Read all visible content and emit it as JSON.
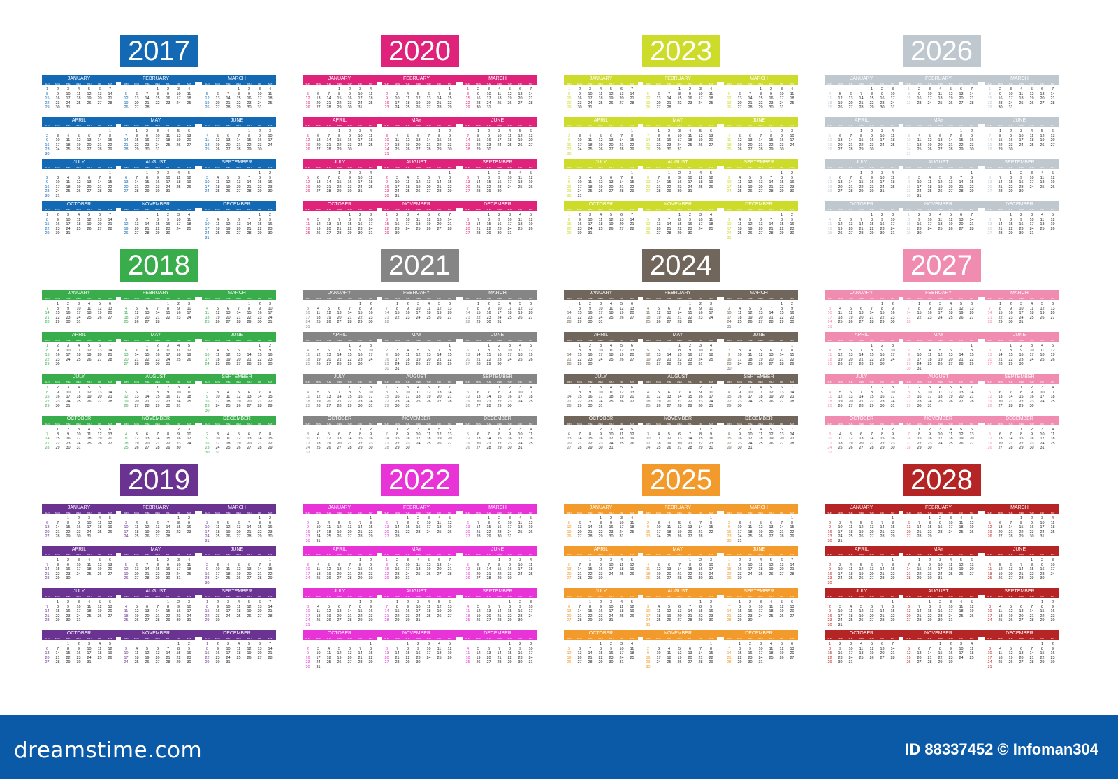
{
  "calendars": [
    {
      "year": "2017",
      "color": "#1369b4",
      "sunday_color": "#1369b4"
    },
    {
      "year": "2020",
      "color": "#e0237a",
      "sunday_color": "#e0237a"
    },
    {
      "year": "2023",
      "color": "#cddc2a",
      "sunday_color": "#cddc2a"
    },
    {
      "year": "2026",
      "color": "#bfc8cf",
      "sunday_color": "#bfc8cf"
    },
    {
      "year": "2018",
      "color": "#39ac4b",
      "sunday_color": "#39ac4b"
    },
    {
      "year": "2021",
      "color": "#858585",
      "sunday_color": "#858585"
    },
    {
      "year": "2024",
      "color": "#70665b",
      "sunday_color": "#70665b"
    },
    {
      "year": "2027",
      "color": "#f08cb0",
      "sunday_color": "#f08cb0"
    },
    {
      "year": "2019",
      "color": "#6a3392",
      "sunday_color": "#6a3392"
    },
    {
      "year": "2022",
      "color": "#e833d6",
      "sunday_color": "#e833d6"
    },
    {
      "year": "2025",
      "color": "#f39a2c",
      "sunday_color": "#f39a2c"
    },
    {
      "year": "2028",
      "color": "#b52525",
      "sunday_color": "#b52525"
    }
  ],
  "month_names": [
    "JANUARY",
    "FEBRUARY",
    "MARCH",
    "APRIL",
    "MAY",
    "JUNE",
    "JULY",
    "AUGUST",
    "SEPTEMBER",
    "OCTOBER",
    "NOVEMBER",
    "DECEMBER"
  ],
  "weekday_headers": [
    "SUN",
    "MON",
    "TUE",
    "WED",
    "THU",
    "FRI",
    "SAT"
  ],
  "footer": {
    "brand": "dreamstime.com",
    "photo_id": "ID 88337452 © Infoman304"
  }
}
